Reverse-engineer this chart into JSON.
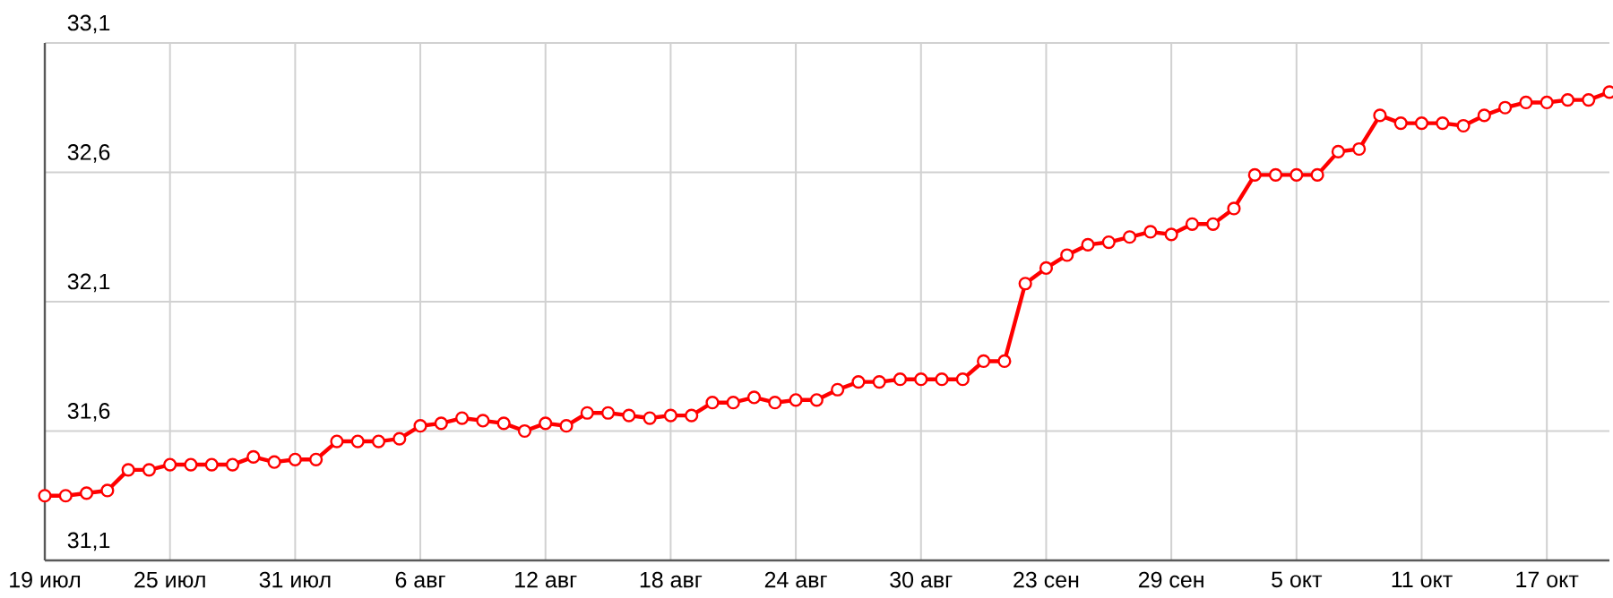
{
  "chart_data": {
    "type": "line",
    "categories": [
      "19 июл",
      null,
      null,
      null,
      null,
      null,
      "25 июл",
      null,
      null,
      null,
      null,
      null,
      "31 июл",
      null,
      null,
      null,
      null,
      null,
      "6 авг",
      null,
      null,
      null,
      null,
      null,
      "12 авг",
      null,
      null,
      null,
      null,
      null,
      "18 авг",
      null,
      null,
      null,
      null,
      null,
      "24 авг",
      null,
      null,
      null,
      null,
      null,
      "30 авг",
      null,
      null,
      null,
      null,
      null,
      "23 сен",
      null,
      null,
      null,
      null,
      null,
      "29 сен",
      null,
      null,
      null,
      null,
      null,
      "5 окт",
      null,
      null,
      null,
      null,
      null,
      "11 окт",
      null,
      null,
      null,
      null,
      null,
      "17 окт",
      null,
      null,
      null
    ],
    "series": [
      {
        "color": "#ff0000",
        "values": [
          31.35,
          31.35,
          31.36,
          31.37,
          31.45,
          31.45,
          31.47,
          31.47,
          31.47,
          31.47,
          31.5,
          31.48,
          31.49,
          31.49,
          31.56,
          31.56,
          31.56,
          31.57,
          31.62,
          31.63,
          31.65,
          31.64,
          31.63,
          31.6,
          31.63,
          31.62,
          31.67,
          31.67,
          31.66,
          31.65,
          31.66,
          31.66,
          31.71,
          31.71,
          31.73,
          31.71,
          31.72,
          31.72,
          31.76,
          31.79,
          31.79,
          31.8,
          31.8,
          31.8,
          31.8,
          31.87,
          31.87,
          32.17,
          32.23,
          32.28,
          32.32,
          32.33,
          32.35,
          32.37,
          32.36,
          32.4,
          32.4,
          32.46,
          32.59,
          32.59,
          32.59,
          32.59,
          32.68,
          32.69,
          32.82,
          32.79,
          32.79,
          32.79,
          32.78,
          32.82,
          32.85,
          32.87,
          32.87,
          32.88,
          32.88,
          32.91
        ]
      }
    ],
    "ylim": [
      31.1,
      33.1
    ],
    "yticks": [
      {
        "value": 31.1,
        "label": "31,1"
      },
      {
        "value": 31.6,
        "label": "31,6"
      },
      {
        "value": 32.1,
        "label": "32,1"
      },
      {
        "value": 32.6,
        "label": "32,6"
      },
      {
        "value": 33.1,
        "label": "33,1"
      }
    ],
    "grid": true,
    "marker": "circle",
    "line_style": "solid"
  }
}
